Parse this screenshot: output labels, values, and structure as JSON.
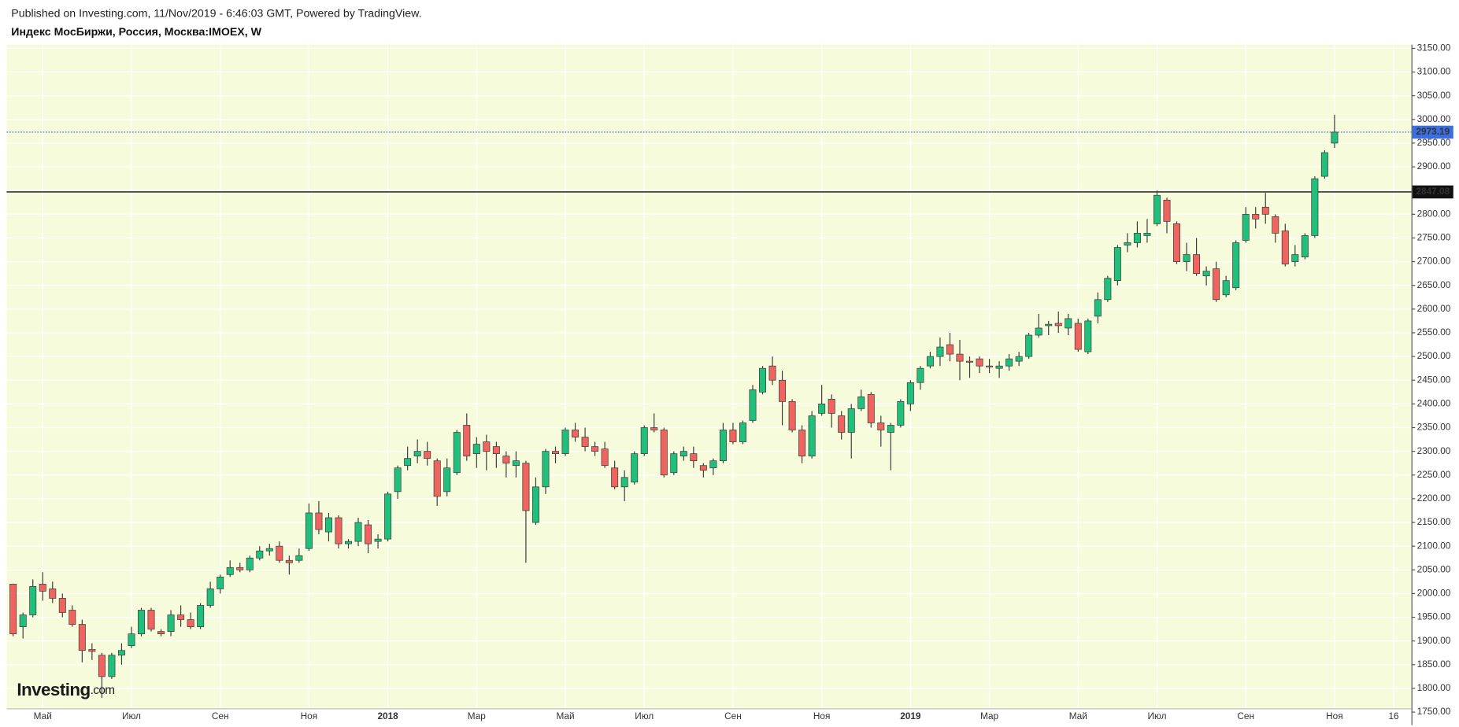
{
  "header": {
    "published": "Published on Investing.com, 11/Nov/2019 - 6:46:03 GMT, Powered by TradingView.",
    "title": "Индекс МосБиржи, Россия, Москва:IMOEX, W"
  },
  "logo": {
    "text": "Investing",
    "suffix": ".com"
  },
  "chart_data": {
    "type": "candlestick",
    "up_color": "#20c07c",
    "down_color": "#f0645f",
    "border_color": "#3a3a3a",
    "background": "#f6fcdb",
    "grid": true,
    "xlim": [
      -0.66,
      141.8
    ],
    "ylim": [
      1722.5,
      3157.8
    ],
    "xticks": [
      {
        "value": 3,
        "label": "Май"
      },
      {
        "value": 12,
        "label": "Июл"
      },
      {
        "value": 21,
        "label": "Сен"
      },
      {
        "value": 30,
        "label": "Ноя"
      },
      {
        "value": 38,
        "label": "2018"
      },
      {
        "value": 47,
        "label": "Мар"
      },
      {
        "value": 56,
        "label": "Май"
      },
      {
        "value": 64,
        "label": "Июл"
      },
      {
        "value": 73,
        "label": "Сен"
      },
      {
        "value": 82,
        "label": "Ноя"
      },
      {
        "value": 91,
        "label": "2019"
      },
      {
        "value": 99,
        "label": "Мар"
      },
      {
        "value": 108,
        "label": "Май"
      },
      {
        "value": 116,
        "label": "Июл"
      },
      {
        "value": 125,
        "label": "Сен"
      },
      {
        "value": 134,
        "label": "Ноя"
      },
      {
        "value": 140,
        "label": "16"
      }
    ],
    "yticks": [
      {
        "value": 1750,
        "label": "1750.00"
      },
      {
        "value": 1800,
        "label": "1800.00"
      },
      {
        "value": 1850,
        "label": "1850.00"
      },
      {
        "value": 1900,
        "label": "1900.00"
      },
      {
        "value": 1950,
        "label": "1950.00"
      },
      {
        "value": 2000,
        "label": "2000.00"
      },
      {
        "value": 2050,
        "label": "2050.00"
      },
      {
        "value": 2100,
        "label": "2100.00"
      },
      {
        "value": 2150,
        "label": "2150.00"
      },
      {
        "value": 2200,
        "label": "2200.00"
      },
      {
        "value": 2250,
        "label": "2250.00"
      },
      {
        "value": 2300,
        "label": "2300.00"
      },
      {
        "value": 2350,
        "label": "2350.00"
      },
      {
        "value": 2400,
        "label": "2400.00"
      },
      {
        "value": 2450,
        "label": "2450.00"
      },
      {
        "value": 2500,
        "label": "2500.00"
      },
      {
        "value": 2550,
        "label": "2550.00"
      },
      {
        "value": 2600,
        "label": "2600.00"
      },
      {
        "value": 2650,
        "label": "2650.00"
      },
      {
        "value": 2700,
        "label": "2700.00"
      },
      {
        "value": 2750,
        "label": "2750.00"
      },
      {
        "value": 2800,
        "label": "2800.00"
      },
      {
        "value": 2850,
        "label": "2850.00"
      },
      {
        "value": 2900,
        "label": "2900.00"
      },
      {
        "value": 2950,
        "label": "2950.00"
      },
      {
        "value": 3000,
        "label": "3000.00"
      },
      {
        "value": 3050,
        "label": "3050.00"
      },
      {
        "value": 3100,
        "label": "3100.00"
      },
      {
        "value": 3150,
        "label": "3150.00"
      }
    ],
    "price_lines": [
      {
        "value": 2973.19,
        "color": "#3b6fe0",
        "dashed": true
      },
      {
        "value": 2847.08,
        "color": "#111111",
        "dashed": false
      }
    ],
    "open": [
      2020,
      1930,
      1955,
      2020,
      2010,
      1990,
      1965,
      1935,
      1882,
      1870,
      1825,
      1870,
      1890,
      1915,
      1965,
      1920,
      1920,
      1955,
      1945,
      1930,
      1975,
      2010,
      2040,
      2055,
      2050,
      2075,
      2090,
      2100,
      2070,
      2070,
      2095,
      2170,
      2130,
      2160,
      2105,
      2110,
      2145,
      2110,
      2115,
      2215,
      2270,
      2290,
      2300,
      2280,
      2215,
      2255,
      2355,
      2295,
      2320,
      2310,
      2290,
      2270,
      2275,
      2150,
      2225,
      2300,
      2295,
      2345,
      2330,
      2310,
      2305,
      2265,
      2225,
      2235,
      2295,
      2350,
      2345,
      2255,
      2290,
      2295,
      2270,
      2265,
      2280,
      2345,
      2320,
      2365,
      2425,
      2480,
      2450,
      2405,
      2345,
      2290,
      2380,
      2410,
      2375,
      2340,
      2390,
      2420,
      2360,
      2340,
      2355,
      2400,
      2445,
      2480,
      2500,
      2525,
      2505,
      2490,
      2495,
      2480,
      2475,
      2480,
      2490,
      2500,
      2545,
      2565,
      2570,
      2560,
      2570,
      2510,
      2585,
      2620,
      2660,
      2735,
      2740,
      2755,
      2780,
      2830,
      2780,
      2700,
      2715,
      2670,
      2685,
      2630,
      2645,
      2745,
      2800,
      2815,
      2795,
      2765,
      2700,
      2710,
      2755,
      2880,
      2950
    ],
    "high": [
      2020,
      1960,
      2030,
      2045,
      2025,
      2000,
      1975,
      1945,
      1895,
      1875,
      1875,
      1895,
      1930,
      1970,
      1970,
      1925,
      1965,
      1975,
      1960,
      1980,
      2025,
      2040,
      2070,
      2065,
      2080,
      2100,
      2105,
      2110,
      2080,
      2095,
      2190,
      2195,
      2170,
      2165,
      2115,
      2160,
      2155,
      2125,
      2215,
      2270,
      2310,
      2325,
      2320,
      2285,
      2285,
      2345,
      2380,
      2330,
      2335,
      2320,
      2300,
      2300,
      2280,
      2245,
      2305,
      2310,
      2350,
      2360,
      2350,
      2320,
      2320,
      2280,
      2260,
      2300,
      2355,
      2380,
      2350,
      2300,
      2310,
      2310,
      2275,
      2285,
      2360,
      2360,
      2365,
      2440,
      2480,
      2500,
      2470,
      2410,
      2355,
      2385,
      2440,
      2420,
      2385,
      2400,
      2430,
      2425,
      2375,
      2360,
      2410,
      2450,
      2480,
      2510,
      2540,
      2550,
      2535,
      2500,
      2500,
      2495,
      2490,
      2505,
      2510,
      2550,
      2590,
      2575,
      2595,
      2590,
      2580,
      2580,
      2635,
      2670,
      2735,
      2760,
      2785,
      2790,
      2850,
      2835,
      2785,
      2740,
      2750,
      2690,
      2700,
      2670,
      2745,
      2815,
      2815,
      2845,
      2800,
      2780,
      2735,
      2760,
      2880,
      2935,
      3010
    ],
    "low": [
      1910,
      1905,
      1950,
      1985,
      1980,
      1950,
      1930,
      1855,
      1860,
      1780,
      1820,
      1850,
      1885,
      1910,
      1920,
      1910,
      1910,
      1930,
      1925,
      1925,
      1970,
      2000,
      2035,
      2045,
      2045,
      2070,
      2080,
      2065,
      2040,
      2065,
      2090,
      2125,
      2110,
      2095,
      2095,
      2100,
      2085,
      2095,
      2110,
      2200,
      2260,
      2275,
      2270,
      2185,
      2205,
      2250,
      2280,
      2265,
      2260,
      2265,
      2245,
      2245,
      2065,
      2145,
      2210,
      2275,
      2290,
      2320,
      2300,
      2290,
      2265,
      2220,
      2195,
      2230,
      2290,
      2340,
      2245,
      2250,
      2280,
      2265,
      2245,
      2250,
      2275,
      2315,
      2315,
      2360,
      2420,
      2440,
      2355,
      2340,
      2275,
      2285,
      2375,
      2350,
      2325,
      2285,
      2385,
      2350,
      2310,
      2260,
      2350,
      2385,
      2430,
      2475,
      2480,
      2490,
      2450,
      2455,
      2465,
      2465,
      2455,
      2470,
      2480,
      2495,
      2540,
      2545,
      2550,
      2545,
      2510,
      2505,
      2570,
      2615,
      2650,
      2720,
      2730,
      2740,
      2775,
      2760,
      2695,
      2680,
      2670,
      2650,
      2615,
      2625,
      2640,
      2740,
      2770,
      2780,
      2740,
      2690,
      2690,
      2705,
      2750,
      2875,
      2940
    ],
    "close": [
      1915,
      1955,
      2015,
      2005,
      1990,
      1960,
      1935,
      1880,
      1878,
      1825,
      1870,
      1880,
      1915,
      1965,
      1925,
      1915,
      1955,
      1945,
      1930,
      1975,
      2010,
      2035,
      2055,
      2050,
      2075,
      2090,
      2095,
      2070,
      2065,
      2080,
      2170,
      2135,
      2160,
      2105,
      2110,
      2150,
      2105,
      2115,
      2210,
      2265,
      2285,
      2300,
      2285,
      2205,
      2265,
      2340,
      2290,
      2315,
      2300,
      2295,
      2275,
      2280,
      2175,
      2225,
      2300,
      2295,
      2345,
      2330,
      2310,
      2300,
      2270,
      2225,
      2245,
      2295,
      2350,
      2345,
      2250,
      2295,
      2300,
      2280,
      2260,
      2280,
      2345,
      2320,
      2360,
      2430,
      2475,
      2450,
      2405,
      2345,
      2290,
      2375,
      2400,
      2380,
      2340,
      2390,
      2415,
      2360,
      2345,
      2355,
      2405,
      2445,
      2475,
      2500,
      2520,
      2505,
      2490,
      2488,
      2480,
      2478,
      2480,
      2495,
      2500,
      2545,
      2560,
      2568,
      2565,
      2580,
      2515,
      2575,
      2620,
      2665,
      2730,
      2740,
      2760,
      2760,
      2840,
      2785,
      2700,
      2715,
      2675,
      2680,
      2620,
      2660,
      2740,
      2800,
      2790,
      2800,
      2760,
      2695,
      2715,
      2755,
      2875,
      2930,
      2973.19
    ]
  }
}
